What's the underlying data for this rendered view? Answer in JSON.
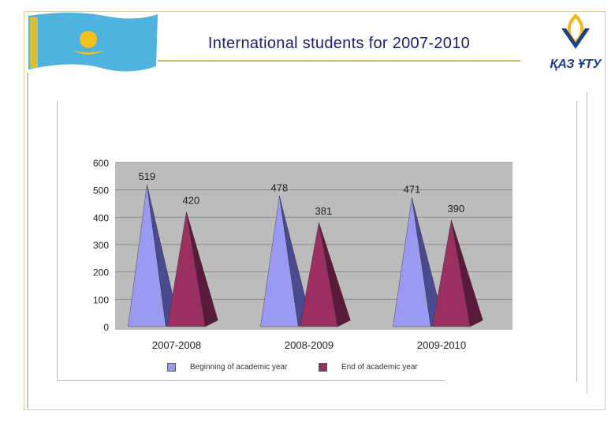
{
  "slide": {
    "title": "International students for 2007-2010",
    "logo_text": "ҚАЗ ҰТУ"
  },
  "colors": {
    "beginning": "#9a9af2",
    "beginning_dark": "#4a4a8e",
    "end": "#9b2f61",
    "end_dark": "#5a1a3a",
    "plot_bg": "#bcbcbc",
    "flag_blue": "#4fb3e0",
    "flag_gold": "#f2c21b"
  },
  "chart_data": {
    "type": "bar",
    "categories": [
      "2007-2008",
      "2008-2009",
      "2009-2010"
    ],
    "series": [
      {
        "name": "Beginning of academic year",
        "values": [
          519,
          478,
          471
        ]
      },
      {
        "name": "End of academic year",
        "values": [
          420,
          381,
          390
        ]
      }
    ],
    "y_ticks": [
      0,
      100,
      200,
      300,
      400,
      500,
      600
    ],
    "ylim": [
      0,
      600
    ],
    "grid": true,
    "legend_position": "bottom"
  }
}
